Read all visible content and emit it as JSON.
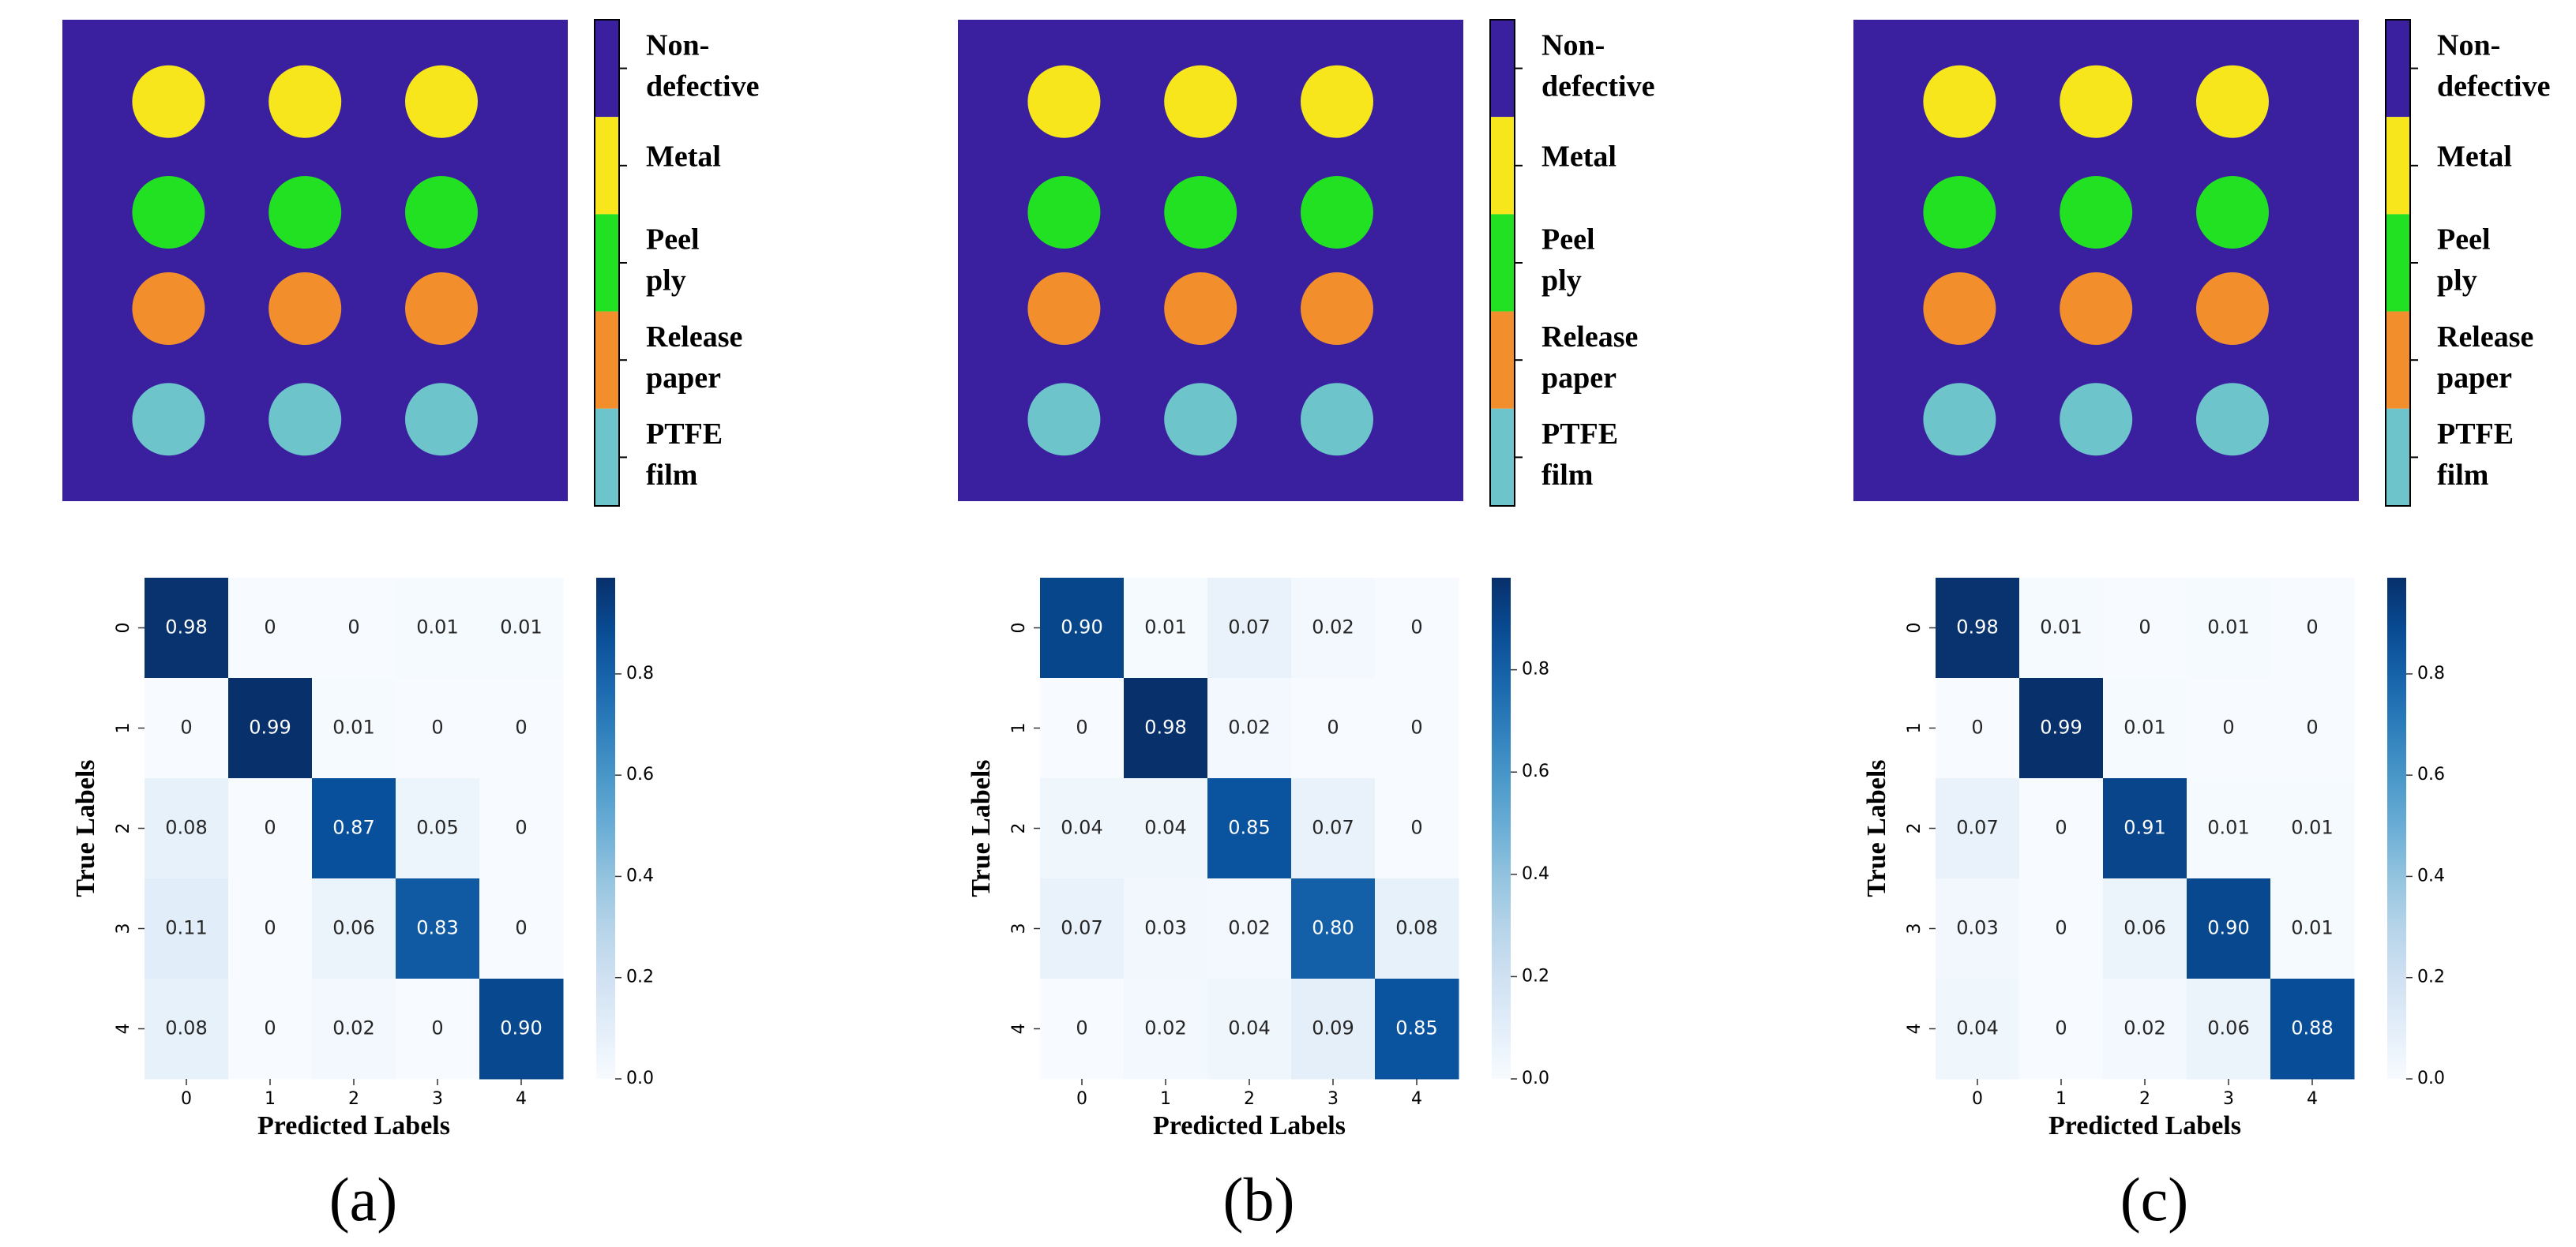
{
  "legend": {
    "background": "#3a1f9e",
    "classes": [
      {
        "lines": [
          "Non-",
          "defective"
        ],
        "color": "#3a1f9e"
      },
      {
        "lines": [
          "Metal"
        ],
        "color": "#f7e61c"
      },
      {
        "lines": [
          "Peel",
          "ply"
        ],
        "color": "#22e022"
      },
      {
        "lines": [
          "Release",
          "paper"
        ],
        "color": "#f28f2c"
      },
      {
        "lines": [
          "PTFE",
          "film"
        ],
        "color": "#6dc4cb"
      }
    ]
  },
  "chart_data": [
    {
      "type": "heatmap",
      "panel_label": "(a)",
      "xlabel": "Predicted Labels",
      "ylabel": "True Labels",
      "colormap": "Blues",
      "x_categories": [
        0,
        1,
        2,
        3,
        4
      ],
      "y_categories": [
        0,
        1,
        2,
        3,
        4
      ],
      "values": [
        [
          0.98,
          0,
          0,
          0.01,
          0.01
        ],
        [
          0,
          0.99,
          0.01,
          0,
          0
        ],
        [
          0.08,
          0,
          0.87,
          0.05,
          0
        ],
        [
          0.11,
          0,
          0.06,
          0.83,
          0
        ],
        [
          0.08,
          0,
          0.02,
          0,
          0.9
        ]
      ],
      "value_labels": [
        [
          "0.98",
          "0",
          "0",
          "0.01",
          "0.01"
        ],
        [
          "0",
          "0.99",
          "0.01",
          "0",
          "0"
        ],
        [
          "0.08",
          "0",
          "0.87",
          "0.05",
          "0"
        ],
        [
          "0.11",
          "0",
          "0.06",
          "0.83",
          "0"
        ],
        [
          "0.08",
          "0",
          "0.02",
          "0",
          "0.90"
        ]
      ],
      "zlim": [
        0,
        0.99
      ],
      "zticks": [
        {
          "value": 0,
          "label": "0.0"
        },
        0.2,
        0.4,
        0.6,
        0.8
      ]
    },
    {
      "type": "heatmap",
      "panel_label": "(b)",
      "xlabel": "Predicted Labels",
      "ylabel": "True Labels",
      "colormap": "Blues",
      "x_categories": [
        0,
        1,
        2,
        3,
        4
      ],
      "y_categories": [
        0,
        1,
        2,
        3,
        4
      ],
      "values": [
        [
          0.9,
          0.01,
          0.07,
          0.02,
          0
        ],
        [
          0,
          0.98,
          0.02,
          0,
          0
        ],
        [
          0.04,
          0.04,
          0.85,
          0.07,
          0
        ],
        [
          0.07,
          0.03,
          0.02,
          0.8,
          0.08
        ],
        [
          0,
          0.02,
          0.04,
          0.09,
          0.85
        ]
      ],
      "value_labels": [
        [
          "0.90",
          "0.01",
          "0.07",
          "0.02",
          "0"
        ],
        [
          "0",
          "0.98",
          "0.02",
          "0",
          "0"
        ],
        [
          "0.04",
          "0.04",
          "0.85",
          "0.07",
          "0"
        ],
        [
          "0.07",
          "0.03",
          "0.02",
          "0.80",
          "0.08"
        ],
        [
          "0",
          "0.02",
          "0.04",
          "0.09",
          "0.85"
        ]
      ],
      "zlim": [
        0,
        0.98
      ],
      "zticks": [
        {
          "value": 0,
          "label": "0.0"
        },
        0.2,
        0.4,
        0.6,
        0.8
      ]
    },
    {
      "type": "heatmap",
      "panel_label": "(c)",
      "xlabel": "Predicted Labels",
      "ylabel": "True Labels",
      "colormap": "Blues",
      "x_categories": [
        0,
        1,
        2,
        3,
        4
      ],
      "y_categories": [
        0,
        1,
        2,
        3,
        4
      ],
      "values": [
        [
          0.98,
          0.01,
          0,
          0.01,
          0
        ],
        [
          0,
          0.99,
          0.01,
          0,
          0
        ],
        [
          0.07,
          0,
          0.91,
          0.01,
          0.01
        ],
        [
          0.03,
          0,
          0.06,
          0.9,
          0.01
        ],
        [
          0.04,
          0,
          0.02,
          0.06,
          0.88
        ]
      ],
      "value_labels": [
        [
          "0.98",
          "0.01",
          "0",
          "0.01",
          "0"
        ],
        [
          "0",
          "0.99",
          "0.01",
          "0",
          "0"
        ],
        [
          "0.07",
          "0",
          "0.91",
          "0.01",
          "0.01"
        ],
        [
          "0.03",
          "0",
          "0.06",
          "0.90",
          "0.01"
        ],
        [
          "0.04",
          "0",
          "0.02",
          "0.06",
          "0.88"
        ]
      ],
      "zlim": [
        0,
        0.99
      ],
      "zticks": [
        {
          "value": 0,
          "label": "0.0"
        },
        0.2,
        0.4,
        0.6,
        0.8
      ]
    }
  ]
}
